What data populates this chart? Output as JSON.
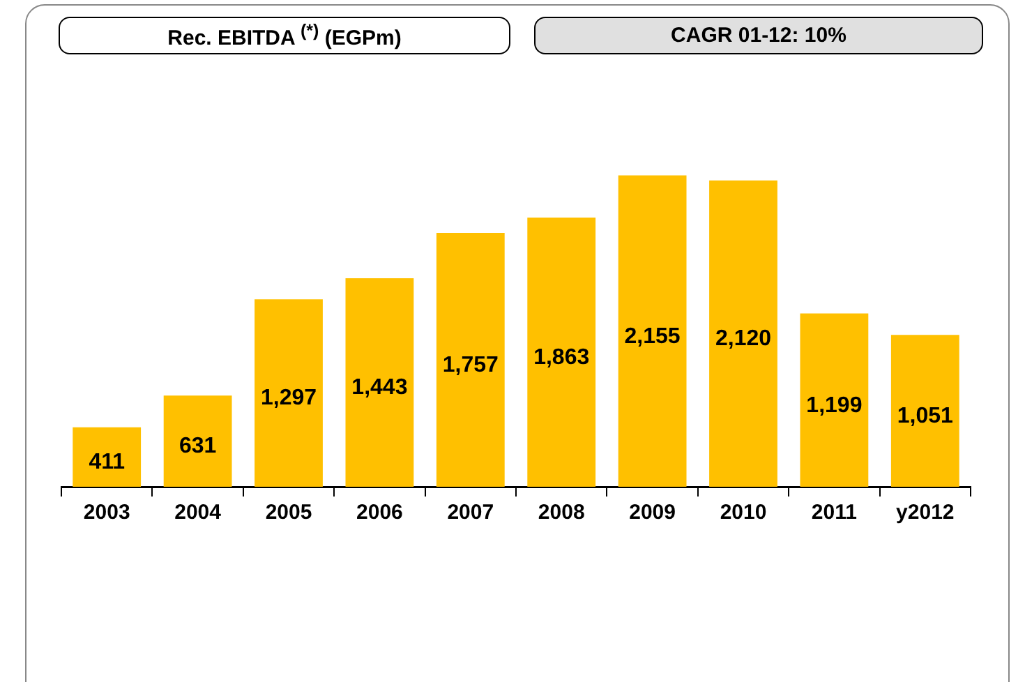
{
  "chart_data": {
    "type": "bar",
    "title": "Rec. EBITDA $^{(*)}$ (EGPm)",
    "annotations": [
      "CAGR 01-12: 10%"
    ],
    "categories": [
      "2003",
      "2004",
      "2005",
      "2006",
      "2007",
      "2008",
      "2009",
      "2010",
      "2011",
      "y2012"
    ],
    "values": [
      411,
      631,
      1297,
      1443,
      1757,
      1863,
      2155,
      2120,
      1199,
      1051
    ],
    "color": "#ffc000",
    "data_labels": true,
    "value_labels": [
      "411",
      "631",
      "1,297",
      "1,443",
      "1,757",
      "1,863",
      "2,155",
      "2,120",
      "1,199",
      "1,051"
    ],
    "grid": false,
    "legend": false
  }
}
